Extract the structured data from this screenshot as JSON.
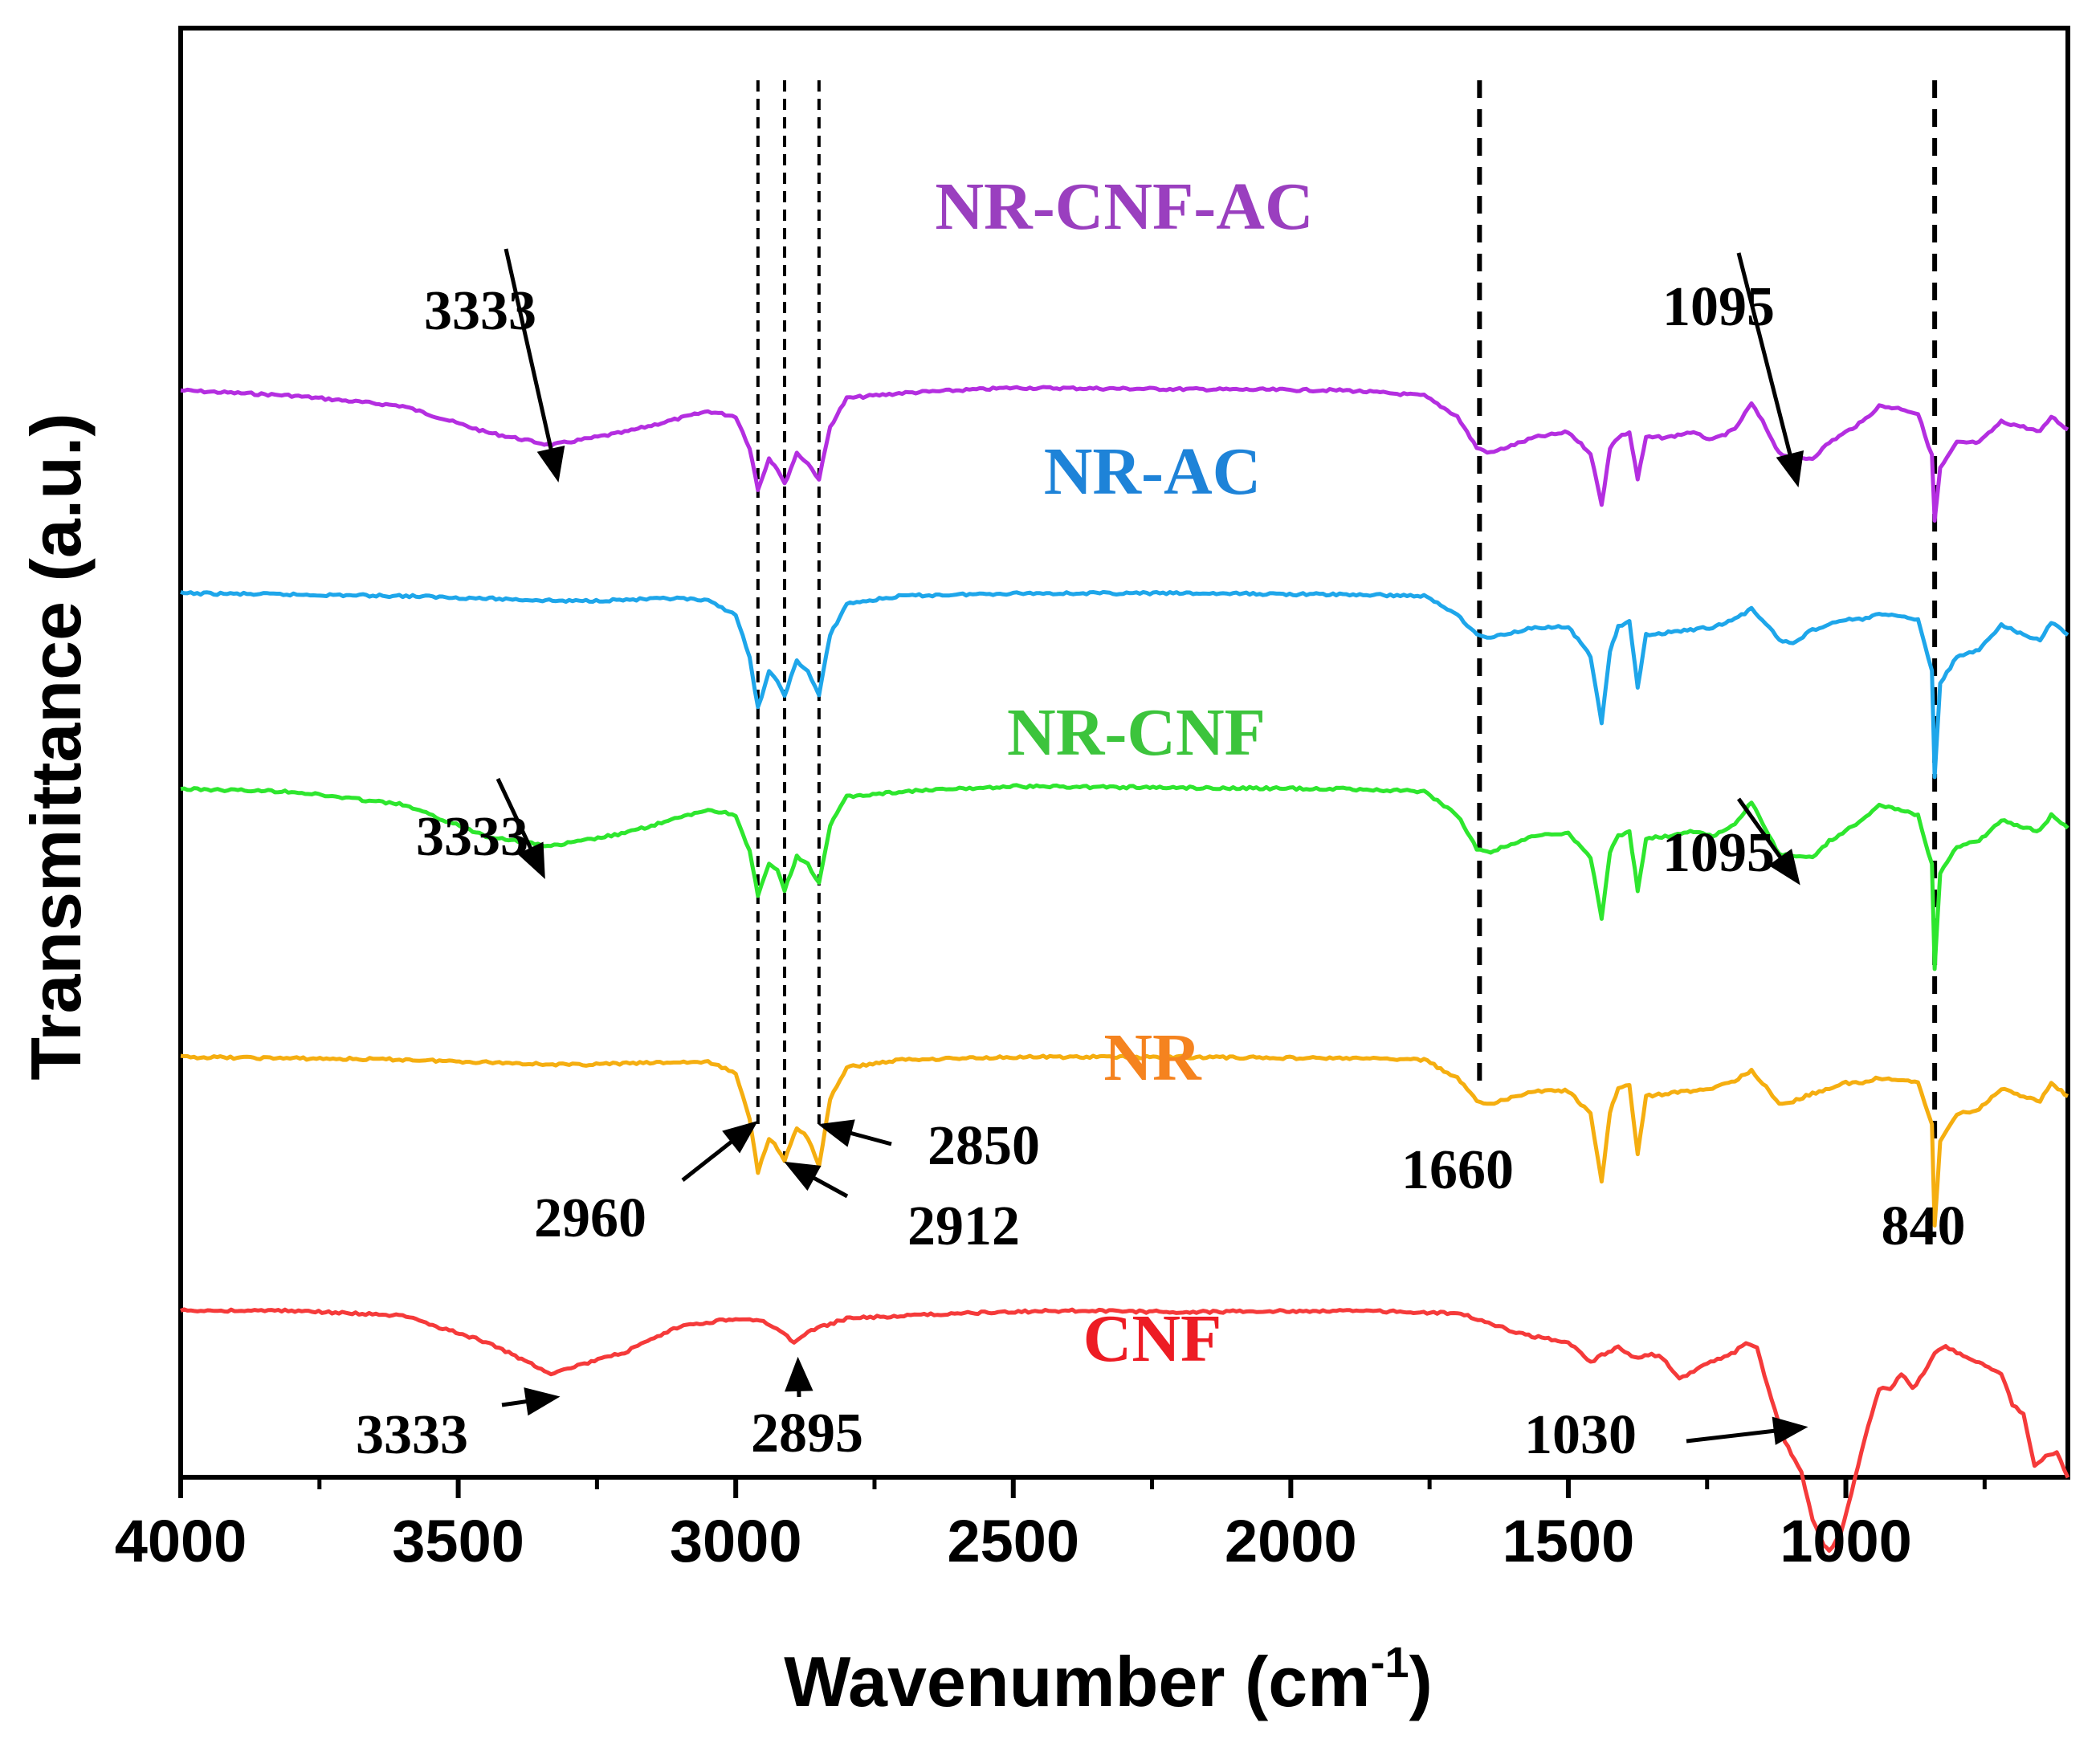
{
  "chart_data": {
    "type": "line",
    "title": "",
    "xlabel": "Wavenumber (cm",
    "xlabel_sup": "-1",
    "xlabel_close": ")",
    "ylabel": "Transmittance (a.u.)",
    "xlim": [
      4000,
      600
    ],
    "x_ticks": [
      4000,
      3500,
      3000,
      2500,
      2000,
      1500,
      1000
    ],
    "y_ticks": [],
    "grid": false,
    "offset_scale": 0.18,
    "series": [
      {
        "name": "NR-CNF-AC",
        "color": "#b42ee0",
        "label_color": "#9a3fbf",
        "baseline": 0.75,
        "points": [
          [
            4000,
            0
          ],
          [
            3800,
            -0.2
          ],
          [
            3600,
            -0.6
          ],
          [
            3450,
            -1.6
          ],
          [
            3333,
            -2.1
          ],
          [
            3200,
            -1.6
          ],
          [
            3050,
            -0.8
          ],
          [
            3000,
            -1.0
          ],
          [
            2975,
            -2.2
          ],
          [
            2960,
            -3.8
          ],
          [
            2940,
            -2.6
          ],
          [
            2925,
            -3.0
          ],
          [
            2912,
            -3.6
          ],
          [
            2890,
            -2.4
          ],
          [
            2870,
            -2.8
          ],
          [
            2850,
            -3.4
          ],
          [
            2830,
            -1.4
          ],
          [
            2800,
            -0.3
          ],
          [
            2700,
            -0.1
          ],
          [
            2500,
            0.1
          ],
          [
            2200,
            0.05
          ],
          [
            1900,
            0.0
          ],
          [
            1760,
            -0.2
          ],
          [
            1700,
            -1.0
          ],
          [
            1665,
            -2.2
          ],
          [
            1640,
            -2.4
          ],
          [
            1560,
            -1.8
          ],
          [
            1500,
            -1.6
          ],
          [
            1460,
            -2.4
          ],
          [
            1440,
            -4.4
          ],
          [
            1425,
            -2.2
          ],
          [
            1410,
            -1.8
          ],
          [
            1390,
            -1.6
          ],
          [
            1375,
            -3.4
          ],
          [
            1360,
            -1.8
          ],
          [
            1320,
            -1.8
          ],
          [
            1280,
            -1.6
          ],
          [
            1240,
            -1.9
          ],
          [
            1200,
            -1.5
          ],
          [
            1170,
            -0.5
          ],
          [
            1150,
            -1.2
          ],
          [
            1120,
            -2.4
          ],
          [
            1095,
            -2.6
          ],
          [
            1060,
            -2.6
          ],
          [
            1030,
            -2.0
          ],
          [
            1000,
            -1.6
          ],
          [
            970,
            -1.2
          ],
          [
            940,
            -0.6
          ],
          [
            900,
            -0.7
          ],
          [
            870,
            -0.9
          ],
          [
            845,
            -2.5
          ],
          [
            840,
            -5.0
          ],
          [
            830,
            -3.0
          ],
          [
            800,
            -2.0
          ],
          [
            760,
            -2.0
          ],
          [
            720,
            -1.2
          ],
          [
            680,
            -1.4
          ],
          [
            650,
            -1.6
          ],
          [
            630,
            -1.0
          ],
          [
            600,
            -1.5
          ]
        ]
      },
      {
        "name": "NR-AC",
        "color": "#1ea6ea",
        "label_color": "#1e83d8",
        "baseline": 0.61,
        "points": [
          [
            4000,
            0
          ],
          [
            3600,
            -0.1
          ],
          [
            3300,
            -0.3
          ],
          [
            3100,
            -0.2
          ],
          [
            3050,
            -0.3
          ],
          [
            3000,
            -0.8
          ],
          [
            2975,
            -2.5
          ],
          [
            2960,
            -4.4
          ],
          [
            2940,
            -3.0
          ],
          [
            2925,
            -3.4
          ],
          [
            2912,
            -3.9
          ],
          [
            2890,
            -2.6
          ],
          [
            2870,
            -3.0
          ],
          [
            2850,
            -3.9
          ],
          [
            2830,
            -1.6
          ],
          [
            2800,
            -0.4
          ],
          [
            2700,
            -0.1
          ],
          [
            2500,
            0.0
          ],
          [
            2200,
            0.0
          ],
          [
            1900,
            -0.05
          ],
          [
            1760,
            -0.1
          ],
          [
            1700,
            -0.8
          ],
          [
            1665,
            -1.6
          ],
          [
            1640,
            -1.7
          ],
          [
            1560,
            -1.3
          ],
          [
            1500,
            -1.3
          ],
          [
            1460,
            -2.4
          ],
          [
            1440,
            -5.0
          ],
          [
            1425,
            -2.2
          ],
          [
            1410,
            -1.3
          ],
          [
            1390,
            -1.1
          ],
          [
            1375,
            -3.6
          ],
          [
            1360,
            -1.6
          ],
          [
            1320,
            -1.5
          ],
          [
            1280,
            -1.4
          ],
          [
            1240,
            -1.3
          ],
          [
            1200,
            -1.0
          ],
          [
            1170,
            -0.6
          ],
          [
            1150,
            -1.0
          ],
          [
            1120,
            -1.8
          ],
          [
            1095,
            -1.9
          ],
          [
            1060,
            -1.4
          ],
          [
            1030,
            -1.2
          ],
          [
            1000,
            -1.0
          ],
          [
            970,
            -1.0
          ],
          [
            940,
            -0.8
          ],
          [
            900,
            -0.9
          ],
          [
            870,
            -1.0
          ],
          [
            845,
            -3.0
          ],
          [
            840,
            -7.0
          ],
          [
            830,
            -3.5
          ],
          [
            800,
            -2.4
          ],
          [
            760,
            -2.2
          ],
          [
            720,
            -1.2
          ],
          [
            680,
            -1.6
          ],
          [
            650,
            -1.8
          ],
          [
            630,
            -1.1
          ],
          [
            600,
            -1.6
          ]
        ]
      },
      {
        "name": "NR-CNF",
        "color": "#2ee62e",
        "label_color": "#3cc43c",
        "baseline": 0.475,
        "points": [
          [
            4000,
            0
          ],
          [
            3800,
            -0.1
          ],
          [
            3600,
            -0.6
          ],
          [
            3450,
            -1.8
          ],
          [
            3333,
            -2.2
          ],
          [
            3200,
            -1.7
          ],
          [
            3050,
            -0.8
          ],
          [
            3000,
            -1.0
          ],
          [
            2975,
            -2.4
          ],
          [
            2960,
            -4.1
          ],
          [
            2940,
            -2.9
          ],
          [
            2925,
            -3.1
          ],
          [
            2912,
            -3.9
          ],
          [
            2890,
            -2.6
          ],
          [
            2870,
            -2.9
          ],
          [
            2850,
            -3.6
          ],
          [
            2830,
            -1.4
          ],
          [
            2800,
            -0.3
          ],
          [
            2700,
            -0.1
          ],
          [
            2500,
            0.1
          ],
          [
            2200,
            0.05
          ],
          [
            1900,
            0.0
          ],
          [
            1760,
            -0.1
          ],
          [
            1700,
            -1.0
          ],
          [
            1665,
            -2.3
          ],
          [
            1640,
            -2.4
          ],
          [
            1560,
            -1.8
          ],
          [
            1500,
            -1.7
          ],
          [
            1460,
            -2.6
          ],
          [
            1440,
            -5.0
          ],
          [
            1425,
            -2.4
          ],
          [
            1410,
            -1.8
          ],
          [
            1390,
            -1.6
          ],
          [
            1375,
            -3.9
          ],
          [
            1360,
            -1.9
          ],
          [
            1320,
            -1.8
          ],
          [
            1280,
            -1.6
          ],
          [
            1240,
            -1.8
          ],
          [
            1200,
            -1.4
          ],
          [
            1170,
            -0.5
          ],
          [
            1150,
            -1.3
          ],
          [
            1120,
            -2.5
          ],
          [
            1095,
            -2.6
          ],
          [
            1060,
            -2.6
          ],
          [
            1030,
            -2.0
          ],
          [
            1000,
            -1.6
          ],
          [
            970,
            -1.2
          ],
          [
            940,
            -0.6
          ],
          [
            900,
            -0.8
          ],
          [
            870,
            -1.0
          ],
          [
            845,
            -2.9
          ],
          [
            840,
            -6.9
          ],
          [
            830,
            -3.2
          ],
          [
            800,
            -2.2
          ],
          [
            760,
            -2.0
          ],
          [
            720,
            -1.2
          ],
          [
            680,
            -1.5
          ],
          [
            650,
            -1.6
          ],
          [
            630,
            -1.0
          ],
          [
            600,
            -1.5
          ]
        ]
      },
      {
        "name": "NR",
        "color": "#f5ae10",
        "label_color": "#f5831f",
        "baseline": 0.29,
        "points": [
          [
            4000,
            0
          ],
          [
            3600,
            -0.1
          ],
          [
            3300,
            -0.3
          ],
          [
            3100,
            -0.2
          ],
          [
            3050,
            -0.2
          ],
          [
            3000,
            -0.6
          ],
          [
            2975,
            -2.4
          ],
          [
            2960,
            -4.4
          ],
          [
            2940,
            -3.1
          ],
          [
            2925,
            -3.5
          ],
          [
            2912,
            -4.0
          ],
          [
            2890,
            -2.7
          ],
          [
            2870,
            -3.1
          ],
          [
            2850,
            -4.2
          ],
          [
            2830,
            -1.6
          ],
          [
            2800,
            -0.4
          ],
          [
            2700,
            -0.1
          ],
          [
            2500,
            0.0
          ],
          [
            2200,
            0.0
          ],
          [
            1900,
            -0.05
          ],
          [
            1760,
            -0.1
          ],
          [
            1700,
            -0.8
          ],
          [
            1665,
            -1.7
          ],
          [
            1640,
            -1.8
          ],
          [
            1560,
            -1.3
          ],
          [
            1500,
            -1.3
          ],
          [
            1460,
            -2.2
          ],
          [
            1440,
            -4.8
          ],
          [
            1425,
            -2.1
          ],
          [
            1410,
            -1.2
          ],
          [
            1390,
            -1.1
          ],
          [
            1375,
            -3.7
          ],
          [
            1360,
            -1.5
          ],
          [
            1320,
            -1.4
          ],
          [
            1280,
            -1.3
          ],
          [
            1240,
            -1.2
          ],
          [
            1200,
            -0.9
          ],
          [
            1170,
            -0.5
          ],
          [
            1150,
            -1.0
          ],
          [
            1120,
            -1.8
          ],
          [
            1095,
            -1.7
          ],
          [
            1060,
            -1.4
          ],
          [
            1030,
            -1.2
          ],
          [
            1000,
            -1.0
          ],
          [
            970,
            -1.0
          ],
          [
            940,
            -0.8
          ],
          [
            900,
            -0.9
          ],
          [
            870,
            -1.0
          ],
          [
            845,
            -2.6
          ],
          [
            840,
            -6.5
          ],
          [
            830,
            -3.2
          ],
          [
            800,
            -2.2
          ],
          [
            760,
            -2.0
          ],
          [
            720,
            -1.2
          ],
          [
            680,
            -1.5
          ],
          [
            650,
            -1.7
          ],
          [
            630,
            -1.0
          ],
          [
            600,
            -1.5
          ]
        ]
      },
      {
        "name": "CNF",
        "color": "#f53a3a",
        "label_color": "#ed1c24",
        "baseline": 0.115,
        "points": [
          [
            4000,
            0
          ],
          [
            3800,
            0
          ],
          [
            3600,
            -0.2
          ],
          [
            3450,
            -1.2
          ],
          [
            3333,
            -2.4
          ],
          [
            3200,
            -1.6
          ],
          [
            3100,
            -0.6
          ],
          [
            3000,
            -0.3
          ],
          [
            2950,
            -0.4
          ],
          [
            2920,
            -0.8
          ],
          [
            2895,
            -1.2
          ],
          [
            2870,
            -0.8
          ],
          [
            2800,
            -0.3
          ],
          [
            2600,
            -0.1
          ],
          [
            2400,
            0.0
          ],
          [
            2200,
            -0.05
          ],
          [
            1900,
            0.0
          ],
          [
            1700,
            -0.1
          ],
          [
            1650,
            -0.4
          ],
          [
            1600,
            -0.8
          ],
          [
            1560,
            -1.0
          ],
          [
            1500,
            -1.2
          ],
          [
            1460,
            -2.0
          ],
          [
            1440,
            -1.7
          ],
          [
            1410,
            -1.4
          ],
          [
            1380,
            -1.8
          ],
          [
            1350,
            -1.7
          ],
          [
            1330,
            -1.8
          ],
          [
            1300,
            -2.6
          ],
          [
            1280,
            -2.4
          ],
          [
            1250,
            -2.0
          ],
          [
            1200,
            -1.6
          ],
          [
            1180,
            -1.2
          ],
          [
            1160,
            -1.4
          ],
          [
            1140,
            -3.0
          ],
          [
            1110,
            -5.0
          ],
          [
            1080,
            -6.2
          ],
          [
            1060,
            -8.0
          ],
          [
            1040,
            -9.0
          ],
          [
            1030,
            -9.2
          ],
          [
            1010,
            -8.6
          ],
          [
            990,
            -7.0
          ],
          [
            960,
            -4.4
          ],
          [
            940,
            -3.0
          ],
          [
            920,
            -3.0
          ],
          [
            900,
            -2.4
          ],
          [
            880,
            -3.0
          ],
          [
            860,
            -2.4
          ],
          [
            840,
            -1.6
          ],
          [
            820,
            -1.4
          ],
          [
            800,
            -1.6
          ],
          [
            760,
            -2.0
          ],
          [
            720,
            -2.4
          ],
          [
            700,
            -3.6
          ],
          [
            680,
            -4.0
          ],
          [
            660,
            -6.0
          ],
          [
            640,
            -5.6
          ],
          [
            620,
            -5.4
          ],
          [
            600,
            -6.4
          ]
        ]
      }
    ],
    "reference_lines": [
      2960,
      2912,
      2850,
      1660,
      840
    ],
    "annotations": [
      {
        "text": "3333",
        "series": "NR-CNF-AC"
      },
      {
        "text": "1095",
        "series": "NR-CNF-AC"
      },
      {
        "text": "3333",
        "series": "NR-CNF"
      },
      {
        "text": "1095",
        "series": "NR-CNF"
      },
      {
        "text": "2960",
        "series": "NR"
      },
      {
        "text": "2912",
        "series": "NR"
      },
      {
        "text": "2850",
        "series": "NR"
      },
      {
        "text": "1660",
        "series": "NR"
      },
      {
        "text": "840",
        "series": "NR"
      },
      {
        "text": "3333",
        "series": "CNF"
      },
      {
        "text": "2895",
        "series": "CNF"
      },
      {
        "text": "1030",
        "series": "CNF"
      }
    ]
  }
}
